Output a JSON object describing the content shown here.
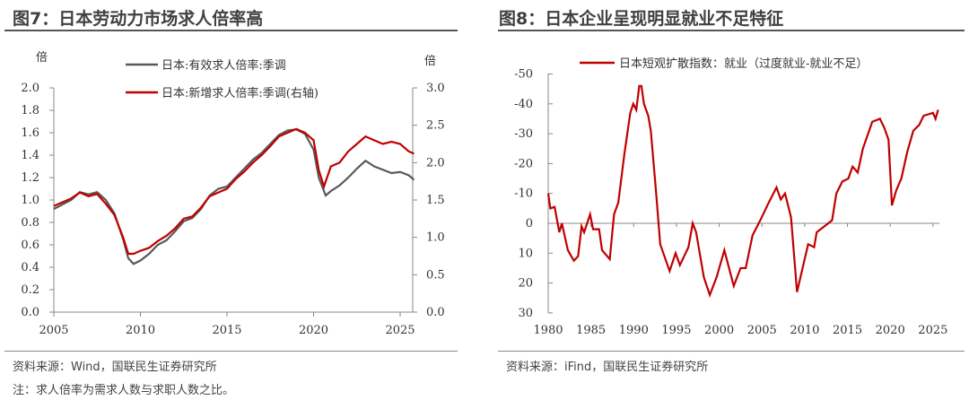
{
  "left": {
    "title": "图7：日本劳动力市场求人倍率高",
    "source": "资料来源：Wind，国联民生证券研究所",
    "note": "注：求人倍率为需求人数与求职人数之比。"
  },
  "right": {
    "title": "图8：日本企业呈现明显就业不足特征",
    "source": "资料来源：iFind，国联民生证券研究所"
  },
  "chart_data": [
    {
      "type": "line",
      "left_unit": "倍",
      "right_unit": "倍",
      "xlim": [
        2005,
        2026
      ],
      "ylim_left": [
        0,
        2.0
      ],
      "ylim_right": [
        0,
        3.0
      ],
      "xticks": [
        "2005",
        "2010",
        "2015",
        "2020",
        "2025"
      ],
      "yticks_left": [
        "0.0",
        "0.2",
        "0.4",
        "0.6",
        "0.8",
        "1.0",
        "1.2",
        "1.4",
        "1.6",
        "1.8",
        "2.0"
      ],
      "yticks_right": [
        "0.0",
        "0.5",
        "1.0",
        "1.5",
        "2.0",
        "2.5",
        "3.0"
      ],
      "legend": "top-center",
      "series": [
        {
          "name": "日本:有效求人倍率:季调",
          "axis": "left",
          "color": "#595959",
          "x": [
            2005,
            2006,
            2006.5,
            2007,
            2007.5,
            2008,
            2008.5,
            2009,
            2009.3,
            2009.6,
            2010,
            2010.5,
            2011,
            2011.5,
            2012,
            2012.5,
            2013,
            2013.5,
            2014,
            2014.5,
            2015,
            2015.5,
            2016,
            2016.5,
            2017,
            2017.5,
            2018,
            2018.5,
            2019,
            2019.5,
            2020,
            2020.3,
            2020.7,
            2021,
            2021.5,
            2022,
            2022.5,
            2023,
            2023.5,
            2024,
            2024.5,
            2025,
            2025.5,
            2025.8
          ],
          "y": [
            0.92,
            1.0,
            1.07,
            1.05,
            1.07,
            1.0,
            0.88,
            0.65,
            0.48,
            0.43,
            0.46,
            0.52,
            0.6,
            0.64,
            0.72,
            0.81,
            0.84,
            0.92,
            1.04,
            1.1,
            1.12,
            1.2,
            1.28,
            1.36,
            1.42,
            1.5,
            1.58,
            1.62,
            1.63,
            1.59,
            1.45,
            1.2,
            1.04,
            1.08,
            1.13,
            1.2,
            1.28,
            1.35,
            1.3,
            1.27,
            1.24,
            1.25,
            1.22,
            1.18
          ]
        },
        {
          "name": "日本:新增求人倍率:季调(右轴)",
          "axis": "right",
          "color": "#c00000",
          "x": [
            2005,
            2006,
            2006.5,
            2007,
            2007.5,
            2008,
            2008.5,
            2009,
            2009.3,
            2009.6,
            2010,
            2010.5,
            2011,
            2011.5,
            2012,
            2012.5,
            2013,
            2013.5,
            2014,
            2014.5,
            2015,
            2015.5,
            2016,
            2016.5,
            2017,
            2017.5,
            2018,
            2018.5,
            2019,
            2019.5,
            2020,
            2020.3,
            2020.6,
            2021,
            2021.5,
            2022,
            2022.5,
            2023,
            2023.5,
            2024,
            2024.5,
            2025,
            2025.5,
            2025.8
          ],
          "y": [
            1.42,
            1.52,
            1.6,
            1.55,
            1.58,
            1.45,
            1.3,
            1.0,
            0.78,
            0.78,
            0.82,
            0.86,
            0.95,
            1.02,
            1.12,
            1.25,
            1.28,
            1.4,
            1.55,
            1.6,
            1.65,
            1.78,
            1.88,
            2.0,
            2.1,
            2.22,
            2.35,
            2.4,
            2.45,
            2.4,
            2.3,
            1.9,
            1.68,
            1.95,
            2.0,
            2.15,
            2.25,
            2.35,
            2.3,
            2.25,
            2.28,
            2.25,
            2.15,
            2.12
          ]
        }
      ]
    },
    {
      "type": "line",
      "xlim": [
        1980,
        2026
      ],
      "ylim": [
        30,
        -50
      ],
      "inverted_y": true,
      "xticks": [
        "1980",
        "1985",
        "1990",
        "1995",
        "2000",
        "2005",
        "2010",
        "2015",
        "2020",
        "2025"
      ],
      "yticks": [
        "-50",
        "-40",
        "-30",
        "-20",
        "-10",
        "0",
        "10",
        "20",
        "30"
      ],
      "legend": "top",
      "series": [
        {
          "name": "日本短观扩散指数：就业（过度就业-就业不足）",
          "color": "#c00000",
          "x": [
            1980,
            1980.25,
            1980.75,
            1981.3,
            1981.6,
            1982.3,
            1983,
            1983.5,
            1983.9,
            1984.2,
            1984.9,
            1985.25,
            1985.95,
            1986.3,
            1987.2,
            1987.7,
            1988.2,
            1988.9,
            1989.6,
            1989.95,
            1990.3,
            1990.65,
            1990.9,
            1991.2,
            1991.7,
            1992,
            1992.6,
            1993.1,
            1994.2,
            1994.9,
            1995.4,
            1996.4,
            1996.9,
            1997.3,
            1998.2,
            1998.9,
            1999.7,
            2000.1,
            2000.6,
            2001.7,
            2002.5,
            2003.1,
            2003.9,
            2004.8,
            2005.8,
            2006.7,
            2007.2,
            2007.7,
            2008.4,
            2009.1,
            2010.4,
            2011.1,
            2011.4,
            2012.3,
            2013.2,
            2013.7,
            2014.4,
            2015.1,
            2015.6,
            2016.2,
            2016.8,
            2017.9,
            2018.8,
            2019.3,
            2019.8,
            2020.2,
            2020.7,
            2021.3,
            2022,
            2022.7,
            2023.4,
            2023.9,
            2025,
            2025.3,
            2025.6
          ],
          "y": [
            -10,
            -5,
            -5.5,
            3,
            0,
            9,
            12.5,
            11,
            1,
            3,
            -3,
            2,
            2,
            9,
            12,
            -3,
            -7,
            -23,
            -37,
            -40,
            -38,
            -46,
            -46,
            -40,
            -36,
            -31,
            -11,
            7,
            16,
            10,
            14,
            8,
            0,
            3,
            18,
            24,
            18,
            14,
            9,
            21,
            15,
            15,
            4,
            -1,
            -7,
            -12,
            -8,
            -10,
            -2,
            23,
            7,
            8,
            3,
            1,
            -1,
            -10,
            -14,
            -15,
            -19,
            -17,
            -25,
            -34,
            -35,
            -32,
            -28,
            -6,
            -11,
            -15,
            -24,
            -31,
            -33,
            -36,
            -37,
            -35,
            -38
          ]
        }
      ]
    }
  ]
}
